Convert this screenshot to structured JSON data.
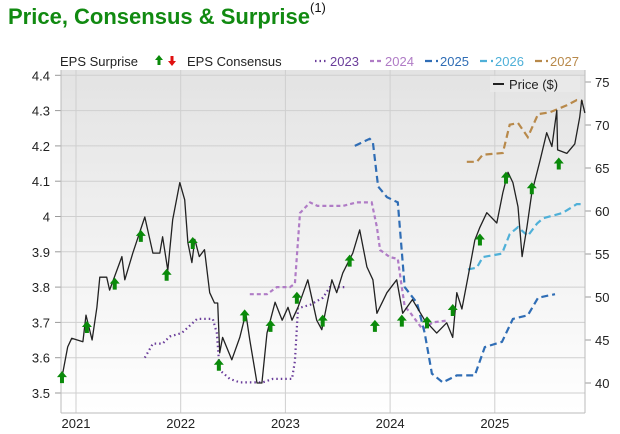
{
  "title": "Price, Consensus & Surprise",
  "title_superscript": "(1)",
  "colors": {
    "title": "#118a11",
    "surprise_up": "#0a8a0a",
    "surprise_down": "#e01010",
    "price": "#222222"
  },
  "chart_data": {
    "type": "line",
    "legend": {
      "surprise_label": "EPS Surprise",
      "consensus_label": "EPS Consensus",
      "price_label": "Price ($)",
      "placement": "top"
    },
    "x_ticks": [
      "2021",
      "2022",
      "2023",
      "2024",
      "2025"
    ],
    "left_axis": {
      "ticks": [
        "3.5",
        "3.6",
        "3.7",
        "3.8",
        "3.9",
        "4",
        "4.1",
        "4.2",
        "4.3",
        "4.4"
      ],
      "range": [
        3.45,
        4.42
      ]
    },
    "right_axis": {
      "ticks": [
        "40",
        "45",
        "50",
        "55",
        "60",
        "65",
        "70",
        "75"
      ],
      "range": [
        36.5,
        76
      ]
    },
    "grid": true,
    "price": {
      "name": "Price ($)",
      "axis": "right",
      "points": [
        [
          "2020-11-13",
          40.7
        ],
        [
          "2020-12-03",
          44.2
        ],
        [
          "2020-12-17",
          45.2
        ],
        [
          "2021-01-25",
          44.8
        ],
        [
          "2021-02-05",
          47.9
        ],
        [
          "2021-02-26",
          45.0
        ],
        [
          "2021-03-15",
          48.8
        ],
        [
          "2021-03-25",
          52.3
        ],
        [
          "2021-04-18",
          52.3
        ],
        [
          "2021-04-28",
          50.8
        ],
        [
          "2021-06-10",
          54.7
        ],
        [
          "2021-06-20",
          52.0
        ],
        [
          "2021-07-18",
          55.1
        ],
        [
          "2021-08-29",
          59.3
        ],
        [
          "2021-09-26",
          55.1
        ],
        [
          "2021-10-20",
          55.1
        ],
        [
          "2021-10-30",
          57.0
        ],
        [
          "2021-11-17",
          53.1
        ],
        [
          "2021-12-04",
          59.0
        ],
        [
          "2021-12-29",
          63.3
        ],
        [
          "2022-01-15",
          61.3
        ],
        [
          "2022-01-26",
          56.3
        ],
        [
          "2022-02-09",
          54.0
        ],
        [
          "2022-02-19",
          56.7
        ],
        [
          "2022-03-07",
          54.7
        ],
        [
          "2022-03-25",
          55.5
        ],
        [
          "2022-04-12",
          50.5
        ],
        [
          "2022-04-29",
          49.3
        ],
        [
          "2022-05-10",
          49.3
        ],
        [
          "2022-05-17",
          43.5
        ],
        [
          "2022-05-27",
          45.3
        ],
        [
          "2022-06-28",
          42.7
        ],
        [
          "2022-07-26",
          45.3
        ],
        [
          "2022-08-16",
          48.1
        ],
        [
          "2022-08-30",
          45.0
        ],
        [
          "2022-09-24",
          40.0
        ],
        [
          "2022-10-11",
          40.0
        ],
        [
          "2022-10-29",
          45.8
        ],
        [
          "2022-11-26",
          49.4
        ],
        [
          "2022-12-21",
          47.3
        ],
        [
          "2023-01-10",
          48.8
        ],
        [
          "2023-01-24",
          47.3
        ],
        [
          "2023-02-14",
          48.8
        ],
        [
          "2023-03-20",
          52.0
        ],
        [
          "2023-04-20",
          47.3
        ],
        [
          "2023-05-08",
          46.2
        ],
        [
          "2023-06-12",
          52.0
        ],
        [
          "2023-06-29",
          50.5
        ],
        [
          "2023-07-20",
          52.8
        ],
        [
          "2023-08-24",
          55.1
        ],
        [
          "2023-09-17",
          57.8
        ],
        [
          "2023-10-12",
          53.5
        ],
        [
          "2023-11-02",
          52.0
        ],
        [
          "2023-11-16",
          48.1
        ],
        [
          "2023-12-21",
          50.5
        ],
        [
          "2024-01-24",
          52.0
        ],
        [
          "2024-02-14",
          48.1
        ],
        [
          "2024-03-19",
          49.7
        ],
        [
          "2024-05-01",
          47.3
        ],
        [
          "2024-06-12",
          45.8
        ],
        [
          "2024-07-17",
          47.0
        ],
        [
          "2024-08-07",
          45.3
        ],
        [
          "2024-08-21",
          50.5
        ],
        [
          "2024-09-08",
          48.6
        ],
        [
          "2024-10-06",
          53.5
        ],
        [
          "2024-10-23",
          56.6
        ],
        [
          "2024-11-10",
          58.1
        ],
        [
          "2024-12-04",
          59.8
        ],
        [
          "2025-01-08",
          58.6
        ],
        [
          "2025-01-29",
          62.1
        ],
        [
          "2025-02-16",
          64.5
        ],
        [
          "2025-03-05",
          63.3
        ],
        [
          "2025-03-23",
          60.5
        ],
        [
          "2025-04-06",
          54.7
        ],
        [
          "2025-04-23",
          58.1
        ],
        [
          "2025-05-10",
          62.1
        ],
        [
          "2025-06-08",
          65.9
        ],
        [
          "2025-07-01",
          69.1
        ],
        [
          "2025-07-19",
          67.5
        ],
        [
          "2025-08-05",
          71.7
        ],
        [
          "2025-08-08",
          67.1
        ],
        [
          "2025-09-09",
          66.7
        ],
        [
          "2025-10-07",
          67.8
        ],
        [
          "2025-10-24",
          70.9
        ],
        [
          "2025-10-31",
          72.9
        ],
        [
          "2025-11-11",
          71.4
        ]
      ]
    },
    "consensus": [
      {
        "name": "2023",
        "color": "#6a3d9a",
        "style": "dotted",
        "points": [
          [
            "2021-08-29",
            3.6
          ],
          [
            "2021-09-26",
            3.64
          ],
          [
            "2021-10-30",
            3.64
          ],
          [
            "2021-11-24",
            3.66
          ],
          [
            "2022-01-05",
            3.67
          ],
          [
            "2022-02-27",
            3.71
          ],
          [
            "2022-04-23",
            3.71
          ],
          [
            "2022-05-07",
            3.67
          ],
          [
            "2022-05-17",
            3.565
          ],
          [
            "2022-06-21",
            3.54
          ],
          [
            "2022-07-26",
            3.53
          ],
          [
            "2022-10-14",
            3.53
          ],
          [
            "2022-11-18",
            3.54
          ],
          [
            "2023-01-24",
            3.54
          ],
          [
            "2023-02-03",
            3.59
          ],
          [
            "2023-02-14",
            3.74
          ],
          [
            "2023-03-28",
            3.75
          ],
          [
            "2023-05-12",
            3.77
          ],
          [
            "2023-06-05",
            3.8
          ],
          [
            "2023-07-27",
            3.8
          ]
        ]
      },
      {
        "name": "2024",
        "color": "#b07cc6",
        "style": "short-dash",
        "points": [
          [
            "2022-08-30",
            3.78
          ],
          [
            "2022-10-29",
            3.78
          ],
          [
            "2022-12-02",
            3.8
          ],
          [
            "2023-01-17",
            3.8
          ],
          [
            "2023-02-03",
            3.81
          ],
          [
            "2023-02-21",
            4.01
          ],
          [
            "2023-03-28",
            4.04
          ],
          [
            "2023-04-23",
            4.03
          ],
          [
            "2023-06-05",
            4.03
          ],
          [
            "2023-07-20",
            4.03
          ],
          [
            "2023-09-07",
            4.04
          ],
          [
            "2023-10-29",
            4.04
          ],
          [
            "2023-11-16",
            3.97
          ],
          [
            "2023-11-27",
            3.905
          ],
          [
            "2023-12-31",
            3.885
          ],
          [
            "2024-01-28",
            3.88
          ],
          [
            "2024-02-11",
            3.8
          ],
          [
            "2024-02-21",
            3.745
          ],
          [
            "2024-03-09",
            3.73
          ],
          [
            "2024-04-24",
            3.68
          ],
          [
            "2024-05-29",
            3.7
          ],
          [
            "2024-07-17",
            3.705
          ]
        ]
      },
      {
        "name": "2025",
        "color": "#2f6db5",
        "style": "dash",
        "points": [
          [
            "2023-08-31",
            4.2
          ],
          [
            "2023-10-22",
            4.22
          ],
          [
            "2023-11-02",
            4.21
          ],
          [
            "2023-11-20",
            4.085
          ],
          [
            "2023-12-21",
            4.055
          ],
          [
            "2024-01-28",
            4.04
          ],
          [
            "2024-02-21",
            3.8
          ],
          [
            "2024-04-04",
            3.755
          ],
          [
            "2024-05-01",
            3.67
          ],
          [
            "2024-05-26",
            3.555
          ],
          [
            "2024-07-03",
            3.53
          ],
          [
            "2024-08-21",
            3.55
          ],
          [
            "2024-10-23",
            3.55
          ],
          [
            "2024-11-27",
            3.63
          ],
          [
            "2025-01-26",
            3.645
          ],
          [
            "2025-03-05",
            3.71
          ],
          [
            "2025-04-26",
            3.72
          ],
          [
            "2025-06-01",
            3.77
          ],
          [
            "2025-07-30",
            3.78
          ]
        ]
      },
      {
        "name": "2026",
        "color": "#4fb0d8",
        "style": "dash",
        "points": [
          [
            "2024-09-29",
            3.85
          ],
          [
            "2024-10-30",
            3.855
          ],
          [
            "2024-11-20",
            3.885
          ],
          [
            "2025-01-26",
            3.895
          ],
          [
            "2025-02-22",
            3.95
          ],
          [
            "2025-03-23",
            3.97
          ],
          [
            "2025-04-26",
            3.945
          ],
          [
            "2025-05-28",
            3.98
          ],
          [
            "2025-06-18",
            3.995
          ],
          [
            "2025-08-25",
            4.01
          ],
          [
            "2025-10-14",
            4.035
          ],
          [
            "2025-11-04",
            4.035
          ]
        ]
      },
      {
        "name": "2027",
        "color": "#b8894a",
        "style": "dash",
        "points": [
          [
            "2024-09-25",
            4.155
          ],
          [
            "2024-10-30",
            4.155
          ],
          [
            "2024-11-20",
            4.175
          ],
          [
            "2025-01-29",
            4.18
          ],
          [
            "2025-02-22",
            4.26
          ],
          [
            "2025-03-23",
            4.265
          ],
          [
            "2025-04-26",
            4.225
          ],
          [
            "2025-06-01",
            4.29
          ],
          [
            "2025-07-11",
            4.295
          ],
          [
            "2025-09-09",
            4.315
          ],
          [
            "2025-10-14",
            4.33
          ],
          [
            "2025-11-04",
            4.325
          ]
        ]
      }
    ],
    "surprises": [
      [
        "2020-11-13",
        3.545,
        "up"
      ],
      [
        "2021-02-08",
        3.687,
        "up"
      ],
      [
        "2021-05-16",
        3.81,
        "up"
      ],
      [
        "2021-08-15",
        3.945,
        "up"
      ],
      [
        "2021-11-13",
        3.835,
        "up"
      ],
      [
        "2022-02-12",
        3.925,
        "up"
      ],
      [
        "2022-05-14",
        3.58,
        "up"
      ],
      [
        "2022-08-12",
        3.72,
        "up"
      ],
      [
        "2022-11-10",
        3.69,
        "up"
      ],
      [
        "2023-02-10",
        3.77,
        "up"
      ],
      [
        "2023-05-11",
        3.705,
        "up"
      ],
      [
        "2023-08-13",
        3.875,
        "up"
      ],
      [
        "2023-11-09",
        3.69,
        "up"
      ],
      [
        "2024-02-11",
        3.705,
        "up"
      ],
      [
        "2024-05-09",
        3.7,
        "up"
      ],
      [
        "2024-08-07",
        3.735,
        "up"
      ],
      [
        "2024-11-10",
        3.935,
        "up"
      ],
      [
        "2025-02-09",
        4.11,
        "up"
      ],
      [
        "2025-05-10",
        4.08,
        "up"
      ],
      [
        "2025-08-12",
        4.15,
        "up"
      ]
    ]
  }
}
